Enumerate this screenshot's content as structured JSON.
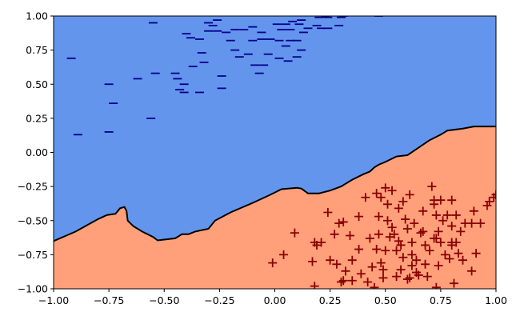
{
  "chart_data": {
    "type": "scatter",
    "title": "",
    "xlabel": "",
    "ylabel": "",
    "xlim": [
      -1.0,
      1.0
    ],
    "ylim": [
      -1.0,
      1.0
    ],
    "grid": false,
    "legend": "none",
    "x_ticks": [
      "−1.00",
      "−0.75",
      "−0.50",
      "−0.25",
      "0.00",
      "0.25",
      "0.50",
      "0.75",
      "1.00"
    ],
    "y_ticks": [
      "1.00",
      "0.75",
      "0.50",
      "0.25",
      "0.00",
      "−0.25",
      "−0.50",
      "−0.75",
      "−1.00"
    ],
    "x_tick_values": [
      -1.0,
      -0.75,
      -0.5,
      -0.25,
      0.0,
      0.25,
      0.5,
      0.75,
      1.0
    ],
    "y_tick_values": [
      1.0,
      0.75,
      0.5,
      0.25,
      0.0,
      -0.25,
      -0.5,
      -0.75,
      -1.0
    ],
    "regions": [
      {
        "class": "negative",
        "color": "#6495ed"
      },
      {
        "class": "positive",
        "color": "#ffa07a"
      }
    ],
    "decision_boundary": [
      [
        -1.0,
        -0.65
      ],
      [
        -0.9,
        -0.58
      ],
      [
        -0.8,
        -0.49
      ],
      [
        -0.76,
        -0.46
      ],
      [
        -0.72,
        -0.45
      ],
      [
        -0.7,
        -0.41
      ],
      [
        -0.68,
        -0.4
      ],
      [
        -0.67,
        -0.43
      ],
      [
        -0.665,
        -0.5
      ],
      [
        -0.64,
        -0.54
      ],
      [
        -0.6,
        -0.58
      ],
      [
        -0.55,
        -0.62
      ],
      [
        -0.53,
        -0.645
      ],
      [
        -0.45,
        -0.63
      ],
      [
        -0.42,
        -0.6
      ],
      [
        -0.39,
        -0.6
      ],
      [
        -0.36,
        -0.58
      ],
      [
        -0.3,
        -0.56
      ],
      [
        -0.27,
        -0.5
      ],
      [
        -0.2,
        -0.44
      ],
      [
        -0.1,
        -0.37
      ],
      [
        -0.02,
        -0.31
      ],
      [
        0.03,
        -0.27
      ],
      [
        0.1,
        -0.26
      ],
      [
        0.12,
        -0.265
      ],
      [
        0.15,
        -0.3
      ],
      [
        0.2,
        -0.3
      ],
      [
        0.25,
        -0.28
      ],
      [
        0.3,
        -0.25
      ],
      [
        0.35,
        -0.2
      ],
      [
        0.4,
        -0.16
      ],
      [
        0.43,
        -0.14
      ],
      [
        0.45,
        -0.11
      ],
      [
        0.47,
        -0.09
      ],
      [
        0.5,
        -0.07
      ],
      [
        0.55,
        -0.03
      ],
      [
        0.6,
        -0.02
      ],
      [
        0.7,
        0.09
      ],
      [
        0.75,
        0.13
      ],
      [
        0.78,
        0.16
      ],
      [
        0.85,
        0.175
      ],
      [
        0.9,
        0.19
      ],
      [
        1.0,
        0.19
      ]
    ],
    "series": [
      {
        "marker": "minus",
        "color": "#00008b",
        "points": [
          [
            -0.89,
            0.13
          ],
          [
            -0.75,
            0.15
          ],
          [
            -0.73,
            0.36
          ],
          [
            -0.75,
            0.5
          ],
          [
            -0.56,
            0.25
          ],
          [
            -0.62,
            0.54
          ],
          [
            -0.54,
            0.58
          ],
          [
            -0.45,
            0.58
          ],
          [
            -0.44,
            0.54
          ],
          [
            -0.41,
            0.5
          ],
          [
            -0.43,
            0.46
          ],
          [
            -0.41,
            0.44
          ],
          [
            -0.34,
            0.44
          ],
          [
            -0.37,
            0.63
          ],
          [
            -0.32,
            0.66
          ],
          [
            -0.33,
            0.73
          ],
          [
            -0.24,
            0.56
          ],
          [
            -0.24,
            0.47
          ],
          [
            -0.22,
            0.88
          ],
          [
            -0.2,
            0.82
          ],
          [
            -0.18,
            0.75
          ],
          [
            -0.16,
            0.7
          ],
          [
            -0.12,
            0.72
          ],
          [
            -0.09,
            0.64
          ],
          [
            -0.07,
            0.58
          ],
          [
            -0.05,
            0.64
          ],
          [
            -0.03,
            0.72
          ],
          [
            0.02,
            0.69
          ],
          [
            0.06,
            0.67
          ],
          [
            0.1,
            0.7
          ],
          [
            -0.1,
            0.82
          ],
          [
            -0.06,
            0.83
          ],
          [
            -0.02,
            0.83
          ],
          [
            0.02,
            0.82
          ],
          [
            0.01,
            0.94
          ],
          [
            -0.26,
            0.97
          ],
          [
            -0.3,
            0.95
          ],
          [
            -0.28,
            0.93
          ],
          [
            -0.26,
            0.89
          ],
          [
            -0.3,
            0.89
          ],
          [
            -0.4,
            0.87
          ],
          [
            -0.38,
            0.84
          ],
          [
            -0.34,
            0.83
          ],
          [
            -0.18,
            0.9
          ],
          [
            -0.14,
            0.9
          ],
          [
            -0.1,
            0.92
          ],
          [
            -0.06,
            0.88
          ],
          [
            0.03,
            0.9
          ],
          [
            0.07,
            0.9
          ],
          [
            0.11,
            0.94
          ],
          [
            0.15,
            0.91
          ],
          [
            0.19,
            0.93
          ],
          [
            0.1,
            0.82
          ],
          [
            0.13,
            0.88
          ],
          [
            0.05,
            0.78
          ],
          [
            0.07,
            0.82
          ],
          [
            0.12,
            0.75
          ],
          [
            0.05,
            0.94
          ],
          [
            0.08,
            0.96
          ],
          [
            0.12,
            0.97
          ],
          [
            0.2,
            0.99
          ],
          [
            0.24,
            0.99
          ],
          [
            0.21,
            0.91
          ],
          [
            0.24,
            0.91
          ],
          [
            0.29,
            0.93
          ],
          [
            0.3,
            0.99
          ],
          [
            0.31,
            1.0
          ],
          [
            0.47,
            1.0
          ],
          [
            0.23,
            1.0
          ],
          [
            -0.55,
            0.95
          ],
          [
            -0.92,
            0.69
          ]
        ]
      },
      {
        "marker": "plus",
        "color": "#8b0000",
        "points": [
          [
            -0.01,
            -0.81
          ],
          [
            0.04,
            -0.75
          ],
          [
            0.09,
            -0.59
          ],
          [
            0.17,
            -0.8
          ],
          [
            0.18,
            -0.98
          ],
          [
            0.18,
            -0.66
          ],
          [
            0.19,
            -0.68
          ],
          [
            0.21,
            -0.66
          ],
          [
            0.24,
            -0.44
          ],
          [
            0.25,
            -0.79
          ],
          [
            0.27,
            -0.6
          ],
          [
            0.29,
            -0.52
          ],
          [
            0.28,
            -0.82
          ],
          [
            0.3,
            -0.95
          ],
          [
            0.31,
            -0.94
          ],
          [
            0.31,
            -0.51
          ],
          [
            0.32,
            -0.87
          ],
          [
            0.34,
            -0.61
          ],
          [
            0.35,
            -0.79
          ],
          [
            0.35,
            -0.94
          ],
          [
            0.38,
            -0.71
          ],
          [
            0.38,
            -0.47
          ],
          [
            0.39,
            -0.89
          ],
          [
            0.41,
            -0.33
          ],
          [
            0.42,
            -0.95
          ],
          [
            0.43,
            -0.63
          ],
          [
            0.44,
            -0.84
          ],
          [
            0.45,
            -0.99
          ],
          [
            0.46,
            -0.3
          ],
          [
            0.46,
            -0.71
          ],
          [
            0.47,
            -0.47
          ],
          [
            0.47,
            -0.6
          ],
          [
            0.48,
            -0.81
          ],
          [
            0.48,
            -0.33
          ],
          [
            0.49,
            -0.86
          ],
          [
            0.49,
            -0.92
          ],
          [
            0.5,
            -0.72
          ],
          [
            0.5,
            -0.26
          ],
          [
            0.51,
            -0.5
          ],
          [
            0.51,
            -0.38
          ],
          [
            0.52,
            -0.62
          ],
          [
            0.53,
            -0.28
          ],
          [
            0.53,
            -0.55
          ],
          [
            0.54,
            -0.6
          ],
          [
            0.55,
            -0.72
          ],
          [
            0.55,
            -0.91
          ],
          [
            0.56,
            -0.65
          ],
          [
            0.56,
            -0.41
          ],
          [
            0.57,
            -0.68
          ],
          [
            0.57,
            -0.86
          ],
          [
            0.58,
            -0.36
          ],
          [
            0.58,
            -0.77
          ],
          [
            0.59,
            -0.49
          ],
          [
            0.6,
            -0.93
          ],
          [
            0.6,
            -0.56
          ],
          [
            0.61,
            -0.31
          ],
          [
            0.61,
            -0.92
          ],
          [
            0.62,
            -0.83
          ],
          [
            0.62,
            -0.75
          ],
          [
            0.62,
            -0.66
          ],
          [
            0.63,
            -0.52
          ],
          [
            0.64,
            -0.79
          ],
          [
            0.64,
            -0.88
          ],
          [
            0.65,
            -0.9
          ],
          [
            0.66,
            -0.59
          ],
          [
            0.67,
            -0.58
          ],
          [
            0.67,
            -0.43
          ],
          [
            0.68,
            -0.68
          ],
          [
            0.68,
            -0.82
          ],
          [
            0.69,
            -0.91
          ],
          [
            0.7,
            -0.72
          ],
          [
            0.71,
            -0.25
          ],
          [
            0.72,
            -0.35
          ],
          [
            0.72,
            -0.63
          ],
          [
            0.72,
            -0.38
          ],
          [
            0.73,
            -0.63
          ],
          [
            0.73,
            -0.46
          ],
          [
            0.73,
            -0.99
          ],
          [
            0.74,
            -0.58
          ],
          [
            0.74,
            -0.83
          ],
          [
            0.75,
            -0.66
          ],
          [
            0.75,
            -0.35
          ],
          [
            0.76,
            -0.5
          ],
          [
            0.77,
            -0.75
          ],
          [
            0.78,
            -0.46
          ],
          [
            0.79,
            -0.78
          ],
          [
            0.8,
            -0.54
          ],
          [
            0.8,
            -0.66
          ],
          [
            0.8,
            -0.68
          ],
          [
            0.8,
            -0.35
          ],
          [
            0.81,
            -0.96
          ],
          [
            0.82,
            -0.46
          ],
          [
            0.82,
            -0.66
          ],
          [
            0.83,
            -0.74
          ],
          [
            0.84,
            -0.58
          ],
          [
            0.85,
            -0.79
          ],
          [
            0.86,
            -0.52
          ],
          [
            0.89,
            -0.52
          ],
          [
            0.89,
            -0.87
          ],
          [
            0.9,
            -0.43
          ],
          [
            0.91,
            -0.74
          ],
          [
            0.93,
            -0.52
          ],
          [
            0.96,
            -0.39
          ],
          [
            0.97,
            -0.36
          ],
          [
            0.99,
            -0.33
          ],
          [
            1.0,
            -0.31
          ]
        ]
      }
    ]
  }
}
